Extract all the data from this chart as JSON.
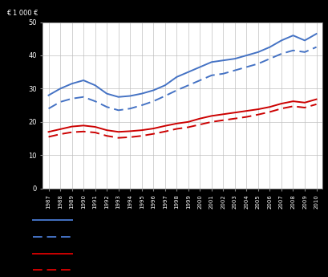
{
  "years": [
    1987,
    1988,
    1989,
    1990,
    1991,
    1992,
    1993,
    1994,
    1995,
    1996,
    1997,
    1998,
    1999,
    2000,
    2001,
    2002,
    2003,
    2004,
    2005,
    2006,
    2007,
    2008,
    2009,
    2010
  ],
  "blue_solid": [
    28000,
    30000,
    31500,
    32500,
    31000,
    28500,
    27500,
    27800,
    28500,
    29500,
    31000,
    33500,
    35000,
    36500,
    38000,
    38500,
    39000,
    40000,
    41000,
    42500,
    44500,
    46000,
    44500,
    46500
  ],
  "blue_dashed": [
    24000,
    26000,
    27000,
    27500,
    26200,
    24500,
    23500,
    24000,
    25000,
    26200,
    27800,
    29500,
    31000,
    32500,
    34000,
    34500,
    35500,
    36500,
    37500,
    39000,
    40500,
    41500,
    41000,
    42500
  ],
  "red_solid": [
    17000,
    17800,
    18600,
    18900,
    18500,
    17500,
    17000,
    17200,
    17500,
    18000,
    18800,
    19500,
    20000,
    21000,
    21800,
    22300,
    22800,
    23300,
    23800,
    24500,
    25500,
    26200,
    25800,
    26800
  ],
  "red_dashed": [
    15500,
    16300,
    16900,
    17100,
    16800,
    15800,
    15200,
    15400,
    15800,
    16400,
    17100,
    17900,
    18400,
    19200,
    20000,
    20500,
    21000,
    21500,
    22200,
    23000,
    24000,
    24700,
    24300,
    25300
  ],
  "ylim": [
    0,
    50000
  ],
  "ytick_vals": [
    0,
    10000,
    20000,
    30000,
    40000,
    50000
  ],
  "ytick_labels": [
    "0",
    "10",
    "20",
    "30",
    "40",
    "50"
  ],
  "blue_color": "#4472C4",
  "red_color": "#CC0000",
  "grid_color": "#C0C0C0",
  "fig_bg": "#000000",
  "plot_bg": "#FFFFFF",
  "ylabel_text": "€ 1 000 €"
}
